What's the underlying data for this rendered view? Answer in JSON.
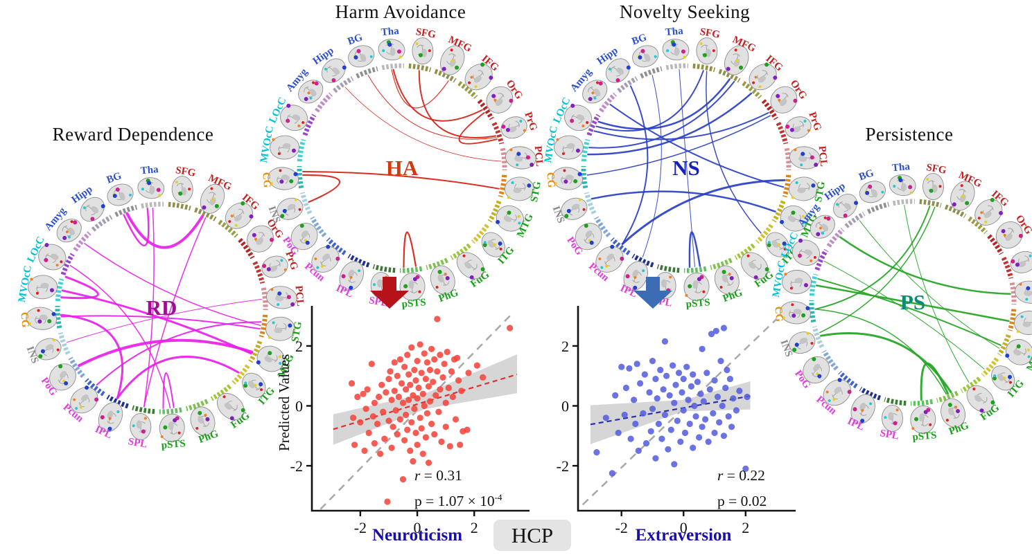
{
  "hcp": {
    "label": "HCP",
    "bg": "#e4e4e4"
  },
  "slice_palette": [
    "#e02020",
    "#2040d0",
    "#f08020",
    "#20a020",
    "#20c8d8",
    "#8020c0",
    "#e8d020",
    "#d02090"
  ],
  "regions": [
    {
      "name": "SFG",
      "label_color": "#c41f1f",
      "ring": "#8f8f49"
    },
    {
      "name": "MFG",
      "label_color": "#c41f1f",
      "ring": "#8f8f49"
    },
    {
      "name": "IFG",
      "label_color": "#c41f1f",
      "ring": "#9b9b3f"
    },
    {
      "name": "OrG",
      "label_color": "#c41f1f",
      "ring": "#b52525"
    },
    {
      "name": "PrG",
      "label_color": "#c41f1f",
      "ring": "#c03434"
    },
    {
      "name": "PCL",
      "label_color": "#c41f1f",
      "ring": "#d98f96"
    },
    {
      "name": "STG",
      "label_color": "#18a018",
      "ring": "#dd8419"
    },
    {
      "name": "MTG",
      "label_color": "#18a018",
      "ring": "#c4ad1e"
    },
    {
      "name": "ITG",
      "label_color": "#18a018",
      "ring": "#d3c22f"
    },
    {
      "name": "FuG",
      "label_color": "#18a018",
      "ring": "#9cc832"
    },
    {
      "name": "PhG",
      "label_color": "#18a018",
      "ring": "#7cc24c"
    },
    {
      "name": "pSTS",
      "label_color": "#18a018",
      "ring": "#5fc05f"
    },
    {
      "name": "SPL",
      "label_color": "#e03ce0",
      "ring": "#3b7a33"
    },
    {
      "name": "IPL",
      "label_color": "#e03ce0",
      "ring": "#1e2f96"
    },
    {
      "name": "Pcun",
      "label_color": "#e03ce0",
      "ring": "#3f62cf"
    },
    {
      "name": "PoG",
      "label_color": "#e03ce0",
      "ring": "#7fa7d6"
    },
    {
      "name": "INS",
      "label_color": "#8a8a8a",
      "ring": "#a7cfdd"
    },
    {
      "name": "CG",
      "label_color": "#e89000",
      "ring": "#2fb6ae"
    },
    {
      "name": "MVOcC",
      "label_color": "#00c0d8",
      "ring": "#42d2d2"
    },
    {
      "name": "LOcC",
      "label_color": "#00c0d8",
      "ring": "#9a45c8"
    },
    {
      "name": "Amyg",
      "label_color": "#2b4fd0",
      "ring": "#bf8cc9"
    },
    {
      "name": "Hipp",
      "label_color": "#2b4fd0",
      "ring": "#a79bb0"
    },
    {
      "name": "BG",
      "label_color": "#2b4fd0",
      "ring": "#8f8f8f"
    },
    {
      "name": "Tha",
      "label_color": "#2b4fd0",
      "ring": "#b9b9b9"
    }
  ],
  "chart_data": [
    {
      "type": "connectogram",
      "title": "Reward Dependence",
      "center_label": "RD",
      "center_color": "#9c1090",
      "chord_color": "#e81ee8",
      "chords": [
        [
          250,
          -66,
          4
        ],
        [
          248,
          262,
          2.5
        ],
        [
          265,
          100,
          1.5
        ],
        [
          220,
          10,
          1.5
        ],
        [
          190,
          27,
          3
        ],
        [
          175,
          12,
          2
        ],
        [
          160,
          -5,
          1
        ],
        [
          176,
          116,
          3
        ],
        [
          205,
          85,
          1.5
        ],
        [
          145,
          26,
          4
        ],
        [
          100,
          -64,
          1.5
        ],
        [
          130,
          8,
          2
        ],
        [
          116,
          40,
          3
        ],
        [
          186,
          198,
          3
        ],
        [
          83,
          89,
          2
        ]
      ]
    },
    {
      "type": "connectogram",
      "title": "Harm Avoidance",
      "center_label": "HA",
      "center_color": "#cf3a10",
      "chord_color": "#d41f14",
      "chords": [
        [
          265,
          -36,
          2
        ],
        [
          -80,
          -19,
          2
        ],
        [
          -96,
          -62,
          1.2
        ],
        [
          250,
          -18,
          1
        ],
        [
          235,
          -4,
          0.8
        ],
        [
          160,
          176,
          2.2
        ],
        [
          178,
          12,
          2
        ],
        [
          82,
          89,
          2.2
        ],
        [
          -34,
          -17,
          2
        ]
      ]
    },
    {
      "type": "connectogram",
      "title": "Novelty Seeking",
      "center_label": "NS",
      "center_color": "#1522b8",
      "chord_color": "#2a3fc4",
      "chords": [
        [
          205,
          -80,
          2
        ],
        [
          208,
          -64,
          2.5
        ],
        [
          192,
          -61,
          2
        ],
        [
          188,
          -49,
          2.5
        ],
        [
          202,
          -34,
          2
        ],
        [
          176,
          -32,
          1.5
        ],
        [
          220,
          11,
          2
        ],
        [
          266,
          85,
          1
        ],
        [
          -78,
          41,
          1.5
        ],
        [
          162,
          26,
          2.5
        ],
        [
          130,
          7,
          3
        ],
        [
          82,
          88,
          2.5
        ],
        [
          250,
          116,
          1
        ],
        [
          236,
          130,
          2
        ]
      ]
    },
    {
      "type": "connectogram",
      "title": "Persistence",
      "center_label": "PS",
      "center_color": "#0d8a70",
      "chord_color": "#23a523",
      "chords": [
        [
          -80,
          176,
          2
        ],
        [
          -77,
          162,
          1.5
        ],
        [
          265,
          55,
          1
        ],
        [
          190,
          11,
          2.5
        ],
        [
          194,
          26,
          2
        ],
        [
          176,
          70,
          1.5
        ],
        [
          222,
          -5,
          2.5
        ],
        [
          160,
          67,
          3
        ],
        [
          85,
          69,
          3
        ],
        [
          205,
          43,
          1
        ],
        [
          237,
          28,
          1
        ]
      ]
    },
    {
      "type": "scatter",
      "xlabel": "Neuroticism",
      "xlabel_color": "#1a10a8",
      "ylabel": "Predicted Values",
      "point_color": "#f2463c",
      "fit_color": "#e03030",
      "arrow_color": "#b5121a",
      "band_color": "#cccccc",
      "identity_color": "#aaaaaa",
      "xticks": [
        -2,
        0,
        2
      ],
      "yticks": [
        2,
        0,
        -2
      ],
      "xlim": [
        -3.7,
        3.6
      ],
      "ylim": [
        -3.5,
        3.2
      ],
      "identity": [
        [
          -3.4,
          -3.45
        ],
        [
          3.35,
          3.1
        ]
      ],
      "fit": [
        [
          -2.95,
          -0.78
        ],
        [
          3.5,
          1.05
        ]
      ],
      "band": [
        [
          -2.95,
          -1.3,
          -0.28
        ],
        [
          0.3,
          -0.1,
          0.42
        ],
        [
          3.5,
          0.42,
          1.72
        ]
      ],
      "stats": {
        "r_label": "r",
        "r_rest": " = 0.31",
        "p_label": "p",
        "p_rest": " = 1.07 × 10",
        "p_exp": "-4"
      },
      "points": [
        [
          -2.3,
          0.75
        ],
        [
          -2.25,
          -0.4
        ],
        [
          -2.2,
          -1.3
        ],
        [
          -2.1,
          0.3
        ],
        [
          -2.0,
          -0.55
        ],
        [
          -1.9,
          0.4
        ],
        [
          -1.85,
          -1.5
        ],
        [
          -1.8,
          -0.1
        ],
        [
          -1.75,
          0.55
        ],
        [
          -1.7,
          -0.9
        ],
        [
          -1.6,
          1.4
        ],
        [
          -1.55,
          -0.35
        ],
        [
          -1.5,
          0.1
        ],
        [
          -1.5,
          -1.25
        ],
        [
          -1.4,
          -0.6
        ],
        [
          -1.35,
          0.3
        ],
        [
          -1.3,
          -1.6
        ],
        [
          -1.25,
          0.7
        ],
        [
          -1.2,
          -0.2
        ],
        [
          -1.15,
          -1.1
        ],
        [
          -1.1,
          0.45
        ],
        [
          -1.05,
          -3.2
        ],
        [
          -1.0,
          0.9
        ],
        [
          -1.0,
          -0.5
        ],
        [
          -0.95,
          1.15
        ],
        [
          -0.9,
          0.2
        ],
        [
          -0.9,
          -1.4
        ],
        [
          -0.85,
          -0.7
        ],
        [
          -0.8,
          1.45
        ],
        [
          -0.8,
          0.5
        ],
        [
          -0.75,
          -0.15
        ],
        [
          -0.7,
          1.0
        ],
        [
          -0.7,
          -0.95
        ],
        [
          -0.65,
          0.3
        ],
        [
          -0.6,
          1.55
        ],
        [
          -0.6,
          -0.45
        ],
        [
          -0.55,
          0.75
        ],
        [
          -0.5,
          -2.45
        ],
        [
          -0.5,
          0.1
        ],
        [
          -0.45,
          1.3
        ],
        [
          -0.45,
          -1.15
        ],
        [
          -0.4,
          0.55
        ],
        [
          -0.4,
          -0.3
        ],
        [
          -0.35,
          1.7
        ],
        [
          -0.35,
          -0.8
        ],
        [
          -0.3,
          1.05
        ],
        [
          -0.3,
          0.2
        ],
        [
          -0.25,
          -1.5
        ],
        [
          -0.25,
          0.7
        ],
        [
          -0.2,
          1.95
        ],
        [
          -0.2,
          -0.55
        ],
        [
          -0.15,
          0.35
        ],
        [
          -0.15,
          -1.85
        ],
        [
          -0.1,
          1.2
        ],
        [
          -0.1,
          -0.1
        ],
        [
          -0.05,
          0.85
        ],
        [
          -0.05,
          -0.9
        ],
        [
          0.0,
          1.5
        ],
        [
          0.0,
          0.25
        ],
        [
          0.0,
          -1.3
        ],
        [
          0.05,
          0.6
        ],
        [
          0.1,
          2.05
        ],
        [
          0.1,
          -0.4
        ],
        [
          0.15,
          1.1
        ],
        [
          0.15,
          -0.75
        ],
        [
          0.2,
          0.4
        ],
        [
          0.2,
          -1.6
        ],
        [
          0.25,
          1.75
        ],
        [
          0.25,
          0.0
        ],
        [
          0.3,
          0.9
        ],
        [
          0.3,
          -1.05
        ],
        [
          0.35,
          1.45
        ],
        [
          0.35,
          -0.25
        ],
        [
          0.4,
          0.65
        ],
        [
          0.4,
          -1.9
        ],
        [
          0.45,
          1.2
        ],
        [
          0.45,
          0.15
        ],
        [
          0.5,
          1.9
        ],
        [
          0.5,
          -0.6
        ],
        [
          0.55,
          0.8
        ],
        [
          0.6,
          1.55
        ],
        [
          0.6,
          -0.95
        ],
        [
          0.65,
          0.35
        ],
        [
          0.7,
          2.9
        ],
        [
          0.7,
          1.15
        ],
        [
          0.75,
          -0.2
        ],
        [
          0.8,
          1.7
        ],
        [
          0.8,
          0.55
        ],
        [
          0.85,
          -1.2
        ],
        [
          0.9,
          0.95
        ],
        [
          0.95,
          1.4
        ],
        [
          1.0,
          0.1
        ],
        [
          1.0,
          -0.7
        ],
        [
          1.05,
          1.8
        ],
        [
          1.1,
          0.6
        ],
        [
          1.15,
          -1.35
        ],
        [
          1.2,
          1.15
        ],
        [
          1.25,
          0.3
        ],
        [
          1.3,
          1.55
        ],
        [
          1.35,
          -0.45
        ],
        [
          1.4,
          1.6
        ],
        [
          1.45,
          0.85
        ],
        [
          1.5,
          -1.3
        ],
        [
          1.55,
          0.5
        ],
        [
          1.6,
          -0.85
        ],
        [
          1.75,
          -0.8
        ],
        [
          1.8,
          1.1
        ],
        [
          2.1,
          1.35
        ],
        [
          2.3,
          0.95
        ],
        [
          3.25,
          2.6
        ]
      ]
    },
    {
      "type": "scatter",
      "xlabel": "Extraversion",
      "xlabel_color": "#1a10a8",
      "ylabel": "",
      "point_color": "#5560dd",
      "fit_color": "#2830b0",
      "arrow_color": "#3c6cb4",
      "band_color": "#cccccc",
      "identity_color": "#aaaaaa",
      "xticks": [
        -2,
        0,
        2
      ],
      "yticks": [
        2,
        0,
        -2
      ],
      "xlim": [
        -3.4,
        3.3
      ],
      "ylim": [
        -3.5,
        3.2
      ],
      "identity": [
        [
          -3.25,
          -3.3
        ],
        [
          3.0,
          2.9
        ]
      ],
      "fit": [
        [
          -3.0,
          -0.62
        ],
        [
          2.15,
          0.33
        ]
      ],
      "band": [
        [
          -3.0,
          -1.28,
          0.02
        ],
        [
          0.0,
          -0.18,
          0.2
        ],
        [
          2.15,
          -0.12,
          0.82
        ]
      ],
      "stats": {
        "r_label": "r",
        "r_rest": " = 0.22",
        "p_label": "p",
        "p_rest": " = 0.02",
        "p_exp": ""
      },
      "points": [
        [
          -2.8,
          -1.55
        ],
        [
          -2.5,
          -0.4
        ],
        [
          -2.3,
          -2.25
        ],
        [
          -2.2,
          0.35
        ],
        [
          -2.1,
          -0.9
        ],
        [
          -2.0,
          1.3
        ],
        [
          -1.9,
          -0.3
        ],
        [
          -1.85,
          0.6
        ],
        [
          -1.75,
          1.25
        ],
        [
          -1.7,
          -1.1
        ],
        [
          -1.6,
          0.2
        ],
        [
          -1.55,
          -0.6
        ],
        [
          -1.5,
          1.4
        ],
        [
          -1.45,
          -1.5
        ],
        [
          -1.4,
          0.75
        ],
        [
          -1.3,
          -0.25
        ],
        [
          -1.25,
          1.05
        ],
        [
          -1.2,
          -1.25
        ],
        [
          -1.1,
          0.45
        ],
        [
          -1.05,
          -0.85
        ],
        [
          -1.0,
          1.5
        ],
        [
          -1.0,
          -0.1
        ],
        [
          -0.9,
          0.9
        ],
        [
          -0.9,
          -1.75
        ],
        [
          -0.85,
          0.25
        ],
        [
          -0.8,
          -0.6
        ],
        [
          -0.75,
          1.2
        ],
        [
          -0.7,
          -1.1
        ],
        [
          -0.65,
          0.55
        ],
        [
          -0.6,
          2.15
        ],
        [
          -0.6,
          -0.3
        ],
        [
          -0.55,
          1.0
        ],
        [
          -0.5,
          -1.45
        ],
        [
          -0.45,
          0.35
        ],
        [
          -0.4,
          -0.8
        ],
        [
          -0.35,
          1.35
        ],
        [
          -0.3,
          0.1
        ],
        [
          -0.3,
          -1.95
        ],
        [
          -0.25,
          0.7
        ],
        [
          -0.2,
          -0.5
        ],
        [
          -0.15,
          1.1
        ],
        [
          -0.1,
          -1.2
        ],
        [
          -0.05,
          0.45
        ],
        [
          0.0,
          -0.15
        ],
        [
          0.0,
          0.9
        ],
        [
          0.05,
          -0.9
        ],
        [
          0.1,
          1.3
        ],
        [
          0.15,
          0.2
        ],
        [
          0.2,
          -0.6
        ],
        [
          0.25,
          0.65
        ],
        [
          0.3,
          -1.4
        ],
        [
          0.3,
          1.05
        ],
        [
          0.35,
          0.0
        ],
        [
          0.4,
          -0.35
        ],
        [
          0.45,
          0.8
        ],
        [
          0.5,
          -1.05
        ],
        [
          0.55,
          0.4
        ],
        [
          0.6,
          1.9
        ],
        [
          0.6,
          -0.7
        ],
        [
          0.65,
          0.15
        ],
        [
          0.7,
          -0.45
        ],
        [
          0.75,
          1.1
        ],
        [
          0.8,
          -1.2
        ],
        [
          0.85,
          0.55
        ],
        [
          0.9,
          2.4
        ],
        [
          0.95,
          -0.25
        ],
        [
          1.0,
          0.85
        ],
        [
          1.0,
          -0.9
        ],
        [
          1.05,
          2.5
        ],
        [
          1.1,
          0.3
        ],
        [
          1.15,
          -0.55
        ],
        [
          1.2,
          1.5
        ],
        [
          1.25,
          0.0
        ],
        [
          1.3,
          2.6
        ],
        [
          1.3,
          -1.0
        ],
        [
          1.35,
          0.6
        ],
        [
          1.4,
          1.2
        ],
        [
          1.45,
          -0.35
        ],
        [
          1.5,
          0.9
        ],
        [
          1.55,
          -0.7
        ],
        [
          1.6,
          0.25
        ],
        [
          1.7,
          -0.15
        ],
        [
          1.8,
          0.5
        ],
        [
          2.0,
          -2.1
        ],
        [
          2.05,
          0.3
        ]
      ]
    }
  ]
}
